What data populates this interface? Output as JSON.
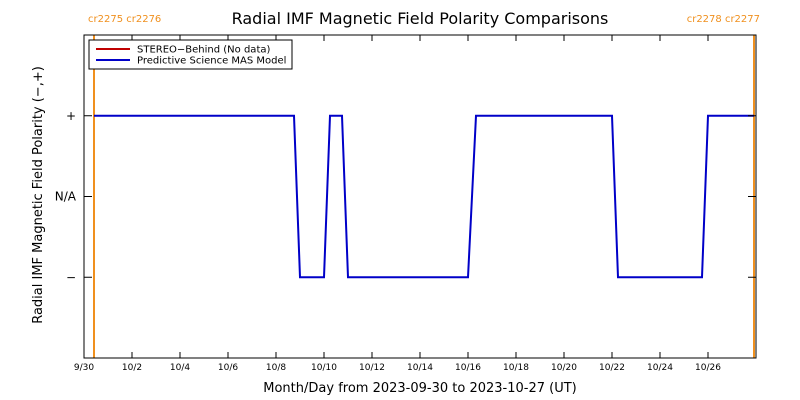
{
  "chart_data": {
    "type": "line",
    "title": "Radial IMF Magnetic Field Polarity Comparisons",
    "xlabel": "Month/Day from 2023-09-30 to 2023-10-27 (UT)",
    "ylabel": "Radial IMF Magnetic Field Polarity (−,+)",
    "x_range": [
      "2023-09-30",
      "2023-10-27"
    ],
    "x_ticks": [
      {
        "date": "2023-09-30",
        "label": "9/30"
      },
      {
        "date": "2023-10-02",
        "label": "10/2"
      },
      {
        "date": "2023-10-04",
        "label": "10/4"
      },
      {
        "date": "2023-10-06",
        "label": "10/6"
      },
      {
        "date": "2023-10-08",
        "label": "10/8"
      },
      {
        "date": "2023-10-10",
        "label": "10/10"
      },
      {
        "date": "2023-10-12",
        "label": "10/12"
      },
      {
        "date": "2023-10-14",
        "label": "10/14"
      },
      {
        "date": "2023-10-16",
        "label": "10/16"
      },
      {
        "date": "2023-10-18",
        "label": "10/18"
      },
      {
        "date": "2023-10-20",
        "label": "10/20"
      },
      {
        "date": "2023-10-22",
        "label": "10/22"
      },
      {
        "date": "2023-10-24",
        "label": "10/24"
      },
      {
        "date": "2023-10-26",
        "label": "10/26"
      }
    ],
    "y_categories": [
      {
        "value": 1,
        "label": "+"
      },
      {
        "value": 0,
        "label": "N/A"
      },
      {
        "value": -1,
        "label": "−"
      }
    ],
    "ylim": [
      -2,
      2
    ],
    "legend": {
      "placement": "top-left",
      "entries": [
        {
          "name": "STEREO−Behind (No data)",
          "color": "#c00000"
        },
        {
          "name": "Predictive Science MAS Model",
          "color": "#0000c8"
        }
      ]
    },
    "series": [
      {
        "name": "Predictive Science MAS Model",
        "color": "#0000c8",
        "points": [
          {
            "x": "2023-09-30T10:00",
            "y": 1
          },
          {
            "x": "2023-10-08T18:00",
            "y": 1
          },
          {
            "x": "2023-10-09T00:00",
            "y": -1
          },
          {
            "x": "2023-10-10T00:00",
            "y": -1
          },
          {
            "x": "2023-10-10T06:00",
            "y": 1
          },
          {
            "x": "2023-10-10T18:00",
            "y": 1
          },
          {
            "x": "2023-10-11T00:00",
            "y": -1
          },
          {
            "x": "2023-10-16T00:00",
            "y": -1
          },
          {
            "x": "2023-10-16T08:00",
            "y": 1
          },
          {
            "x": "2023-10-22T00:00",
            "y": 1
          },
          {
            "x": "2023-10-22T06:00",
            "y": -1
          },
          {
            "x": "2023-10-25T18:00",
            "y": -1
          },
          {
            "x": "2023-10-26T00:00",
            "y": 1
          },
          {
            "x": "2023-10-27T22:00",
            "y": 1
          }
        ]
      }
    ],
    "carrington_rotations": [
      {
        "date": "2023-09-30T10:00",
        "labels": [
          "cr2275",
          "cr2276"
        ],
        "color": "#f0901e"
      },
      {
        "date": "2023-10-27T22:00",
        "labels": [
          "cr2278",
          "cr2277"
        ],
        "color": "#f0901e"
      }
    ]
  }
}
